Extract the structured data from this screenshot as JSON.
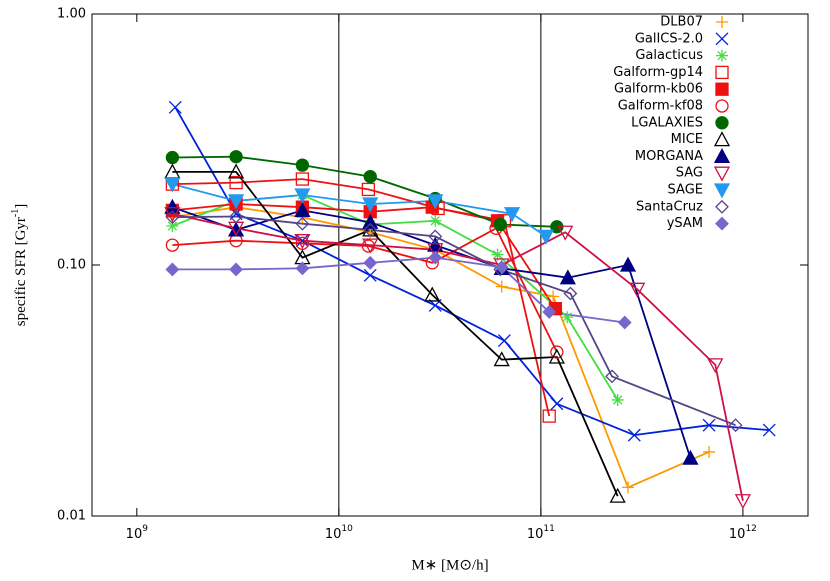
{
  "chart_data": {
    "type": "line",
    "x_scale": "log",
    "y_scale": "log",
    "x_label": "M∗ [M⊙/h]",
    "y_label": {
      "text": "specific SFR [Gyr",
      "superscript": "-1",
      "suffix": "]"
    },
    "xlim": [
      600000000.0,
      2100000000000.0
    ],
    "xticks": [
      {
        "value": 1000000000.0,
        "label": "10",
        "exponent": "9"
      },
      {
        "value": 10000000000.0,
        "label": "10",
        "exponent": "10"
      },
      {
        "value": 100000000000.0,
        "label": "10",
        "exponent": "11"
      },
      {
        "value": 1000000000000.0,
        "label": "10",
        "exponent": "12"
      }
    ],
    "ylim": [
      0.01,
      1
    ],
    "yticks": [
      {
        "value": 0.01,
        "label": "0.01"
      },
      {
        "value": 0.1,
        "label": "0.10"
      },
      {
        "value": 1,
        "label": "1.00"
      }
    ],
    "vlines": [
      10000000000.0,
      100000000000.0
    ],
    "legend": "top-right",
    "series": [
      {
        "name": "DLB07",
        "color": "#ff9900",
        "marker": "plus",
        "x": [
          1500000000.0,
          3100000000.0,
          6600000000.0,
          14300000000.0,
          30000000000.0,
          64000000000.0,
          115000000000.0,
          270000000000.0,
          680000000000.0
        ],
        "values": [
          0.155,
          0.17,
          0.155,
          0.135,
          0.115,
          0.082,
          0.075,
          0.013,
          0.018
        ]
      },
      {
        "name": "GalICS-2.0",
        "color": "#0022dd",
        "marker": "x",
        "x": [
          1550000000.0,
          3100000000.0,
          6600000000.0,
          14300000000.0,
          30000000000.0,
          66000000000.0,
          120000000000.0,
          290000000000.0,
          680000000000.0,
          1350000000000.0
        ],
        "values": [
          0.425,
          0.16,
          0.125,
          0.091,
          0.069,
          0.05,
          0.028,
          0.021,
          0.023,
          0.022
        ]
      },
      {
        "name": "Galacticus",
        "color": "#44dd44",
        "marker": "star",
        "x": [
          1500000000.0,
          3100000000.0,
          6600000000.0,
          14300000000.0,
          30000000000.0,
          61000000000.0,
          135000000000.0,
          240000000000.0
        ],
        "values": [
          0.143,
          0.18,
          0.19,
          0.145,
          0.15,
          0.11,
          0.062,
          0.029
        ]
      },
      {
        "name": "Galform-gp14",
        "color": "#ee1111",
        "marker": "square-open",
        "x": [
          1500000000.0,
          3100000000.0,
          6600000000.0,
          14000000000.0,
          31000000000.0,
          66000000000.0,
          110000000000.0
        ],
        "values": [
          0.21,
          0.213,
          0.22,
          0.2,
          0.168,
          0.15,
          0.025
        ]
      },
      {
        "name": "Galform-kb06",
        "color": "#ee1111",
        "marker": "square",
        "x": [
          1500000000.0,
          3100000000.0,
          6600000000.0,
          14300000000.0,
          29000000000.0,
          61000000000.0,
          118000000000.0
        ],
        "values": [
          0.165,
          0.175,
          0.17,
          0.163,
          0.17,
          0.15,
          0.067
        ]
      },
      {
        "name": "Galform-kf08",
        "color": "#ee1111",
        "marker": "circle-open",
        "x": [
          1500000000.0,
          3100000000.0,
          6600000000.0,
          14000000000.0,
          29000000000.0,
          60000000000.0,
          120000000000.0
        ],
        "values": [
          0.12,
          0.125,
          0.122,
          0.119,
          0.102,
          0.14,
          0.045
        ]
      },
      {
        "name": "LGALAXIES",
        "color": "#006600",
        "marker": "circle",
        "x": [
          1500000000.0,
          3100000000.0,
          6600000000.0,
          14300000000.0,
          30000000000.0,
          63000000000.0,
          120000000000.0
        ],
        "values": [
          0.268,
          0.27,
          0.25,
          0.225,
          0.184,
          0.145,
          0.142
        ]
      },
      {
        "name": "MICE",
        "color": "#000000",
        "marker": "triangle-open",
        "x": [
          1500000000.0,
          3100000000.0,
          6600000000.0,
          14300000000.0,
          29000000000.0,
          64000000000.0,
          120000000000.0,
          240000000000.0
        ],
        "values": [
          0.235,
          0.235,
          0.107,
          0.138,
          0.076,
          0.042,
          0.043,
          0.012
        ]
      },
      {
        "name": "MORGANA",
        "color": "#000080",
        "marker": "triangle",
        "x": [
          1500000000.0,
          3100000000.0,
          6600000000.0,
          14300000000.0,
          30000000000.0,
          64000000000.0,
          136000000000.0,
          270000000000.0,
          550000000000.0
        ],
        "values": [
          0.17,
          0.138,
          0.165,
          0.148,
          0.12,
          0.097,
          0.089,
          0.1,
          0.017
        ]
      },
      {
        "name": "SAG",
        "color": "#cc1144",
        "marker": "triangle-down-open",
        "x": [
          1500000000.0,
          3100000000.0,
          6600000000.0,
          14300000000.0,
          30000000000.0,
          64000000000.0,
          132000000000.0,
          300000000000.0,
          730000000000.0,
          1000000000000.0
        ],
        "values": [
          0.16,
          0.14,
          0.125,
          0.12,
          0.115,
          0.1,
          0.135,
          0.08,
          0.04,
          0.0115
        ]
      },
      {
        "name": "SAGE",
        "color": "#2299ee",
        "marker": "triangle-down",
        "x": [
          1500000000.0,
          3100000000.0,
          6600000000.0,
          14300000000.0,
          30000000000.0,
          72000000000.0,
          106000000000.0
        ],
        "values": [
          0.21,
          0.18,
          0.19,
          0.175,
          0.18,
          0.16,
          0.13
        ]
      },
      {
        "name": "SantaCruz",
        "color": "#554488",
        "marker": "diamond-open",
        "x": [
          1500000000.0,
          3100000000.0,
          6600000000.0,
          14300000000.0,
          30000000000.0,
          63000000000.0,
          140000000000.0,
          225000000000.0,
          920000000000.0
        ],
        "values": [
          0.155,
          0.156,
          0.146,
          0.138,
          0.13,
          0.096,
          0.077,
          0.036,
          0.023
        ]
      },
      {
        "name": "ySAM",
        "color": "#7766cc",
        "marker": "diamond",
        "x": [
          1500000000.0,
          3100000000.0,
          6600000000.0,
          14300000000.0,
          30000000000.0,
          64000000000.0,
          110000000000.0,
          260000000000.0
        ],
        "values": [
          0.096,
          0.096,
          0.097,
          0.102,
          0.107,
          0.098,
          0.065,
          0.059
        ]
      }
    ]
  }
}
